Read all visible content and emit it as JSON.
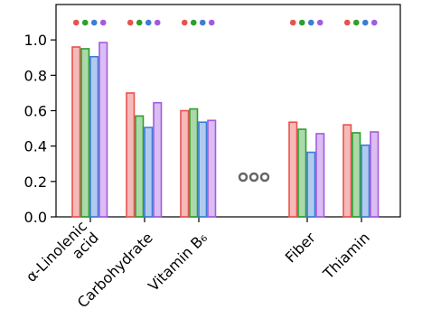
{
  "chart_data": {
    "type": "bar",
    "categories": [
      "α-Linolenic\nacid",
      "Carbohydrate",
      "Vitamin B₆",
      null,
      "Fiber",
      "Thiamin"
    ],
    "series": [
      {
        "color": "#e8534f",
        "values": [
          0.96,
          0.7,
          0.6,
          null,
          0.535,
          0.52
        ]
      },
      {
        "color": "#2ca02c",
        "values": [
          0.95,
          0.57,
          0.61,
          null,
          0.495,
          0.475
        ]
      },
      {
        "color": "#3b7dd8",
        "values": [
          0.905,
          0.505,
          0.535,
          null,
          0.365,
          0.405
        ]
      },
      {
        "color": "#a35ae0",
        "values": [
          0.985,
          0.645,
          0.545,
          null,
          0.47,
          0.48
        ]
      }
    ],
    "ylim": [
      0,
      1.2
    ],
    "yticks": [
      {
        "value": 0,
        "label": "0.0"
      },
      {
        "value": 0.2,
        "label": "0.2"
      },
      {
        "value": 0.4,
        "label": "0.4"
      },
      {
        "value": 0.6,
        "label": "0.6"
      },
      {
        "value": 0.8,
        "label": "0.8"
      },
      {
        "value": 1.0,
        "label": "1.0"
      }
    ]
  }
}
